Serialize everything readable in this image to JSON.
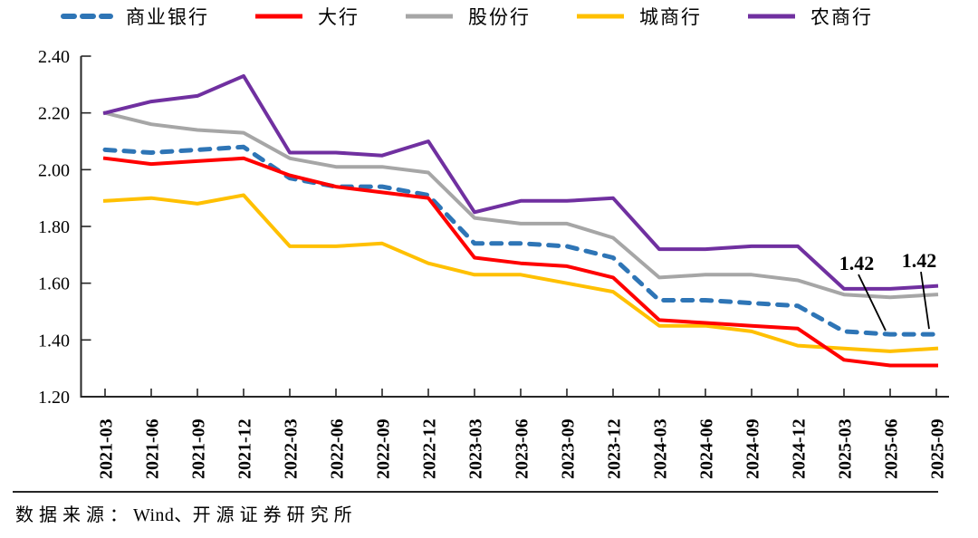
{
  "chart_data": {
    "type": "line",
    "title": "",
    "x_labels": [
      "2021-03",
      "2021-06",
      "2021-09",
      "2021-12",
      "2022-03",
      "2022-06",
      "2022-09",
      "2022-12",
      "2023-03",
      "2023-06",
      "2023-09",
      "2023-12",
      "2024-03",
      "2024-06",
      "2024-09",
      "2024-12",
      "2025-03",
      "2025-06",
      "2025-09"
    ],
    "series": [
      {
        "name": "商业银行",
        "color": "#2E75B6",
        "style": "dashed",
        "values": [
          2.07,
          2.06,
          2.07,
          2.08,
          1.97,
          1.94,
          1.94,
          1.91,
          1.74,
          1.74,
          1.73,
          1.69,
          1.54,
          1.54,
          1.53,
          1.52,
          1.43,
          1.42,
          1.42
        ]
      },
      {
        "name": "大行",
        "color": "#FF0000",
        "style": "solid",
        "values": [
          2.04,
          2.02,
          2.03,
          2.04,
          1.98,
          1.94,
          1.92,
          1.9,
          1.69,
          1.67,
          1.66,
          1.62,
          1.47,
          1.46,
          1.45,
          1.44,
          1.33,
          1.31,
          1.31
        ]
      },
      {
        "name": "股份行",
        "color": "#A6A6A6",
        "style": "solid",
        "values": [
          2.2,
          2.16,
          2.14,
          2.13,
          2.04,
          2.01,
          2.01,
          1.99,
          1.83,
          1.81,
          1.81,
          1.76,
          1.62,
          1.63,
          1.63,
          1.61,
          1.56,
          1.55,
          1.56
        ]
      },
      {
        "name": "城商行",
        "color": "#FFC000",
        "style": "solid",
        "values": [
          1.89,
          1.9,
          1.88,
          1.91,
          1.73,
          1.73,
          1.74,
          1.67,
          1.63,
          1.63,
          1.6,
          1.57,
          1.45,
          1.45,
          1.43,
          1.38,
          1.37,
          1.36,
          1.37
        ]
      },
      {
        "name": "农商行",
        "color": "#7030A0",
        "style": "solid",
        "values": [
          2.2,
          2.24,
          2.26,
          2.33,
          2.06,
          2.06,
          2.05,
          2.1,
          1.85,
          1.89,
          1.89,
          1.9,
          1.72,
          1.72,
          1.73,
          1.73,
          1.58,
          1.58,
          1.59
        ]
      }
    ],
    "ylim": [
      1.2,
      2.4
    ],
    "ytick_step": 0.2,
    "y_tick_labels": [
      "2.40",
      "2.20",
      "2.00",
      "1.80",
      "1.60",
      "1.40",
      "1.20"
    ],
    "legend_position": "top",
    "grid": false,
    "annotations": [
      {
        "text": "1.42",
        "series": "商业银行",
        "x_label": "2025-06",
        "x_index": 17
      },
      {
        "text": "1.42",
        "series": "商业银行",
        "x_label": "2025-09",
        "x_index": 18
      }
    ]
  },
  "footer": {
    "part1": "数据来源：",
    "part2": "Wind、",
    "part3": "开源证券研究所"
  }
}
